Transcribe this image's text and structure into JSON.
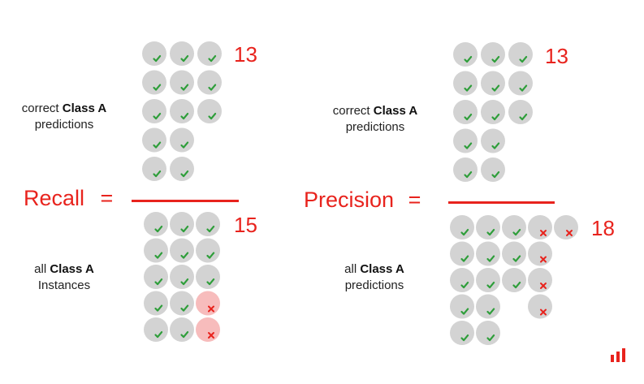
{
  "colors": {
    "accent": "#e8231d",
    "circle": "#d3d3d3",
    "circle_wrong": "#f7bcbc",
    "check": "#2e9e3a",
    "cross": "#e8231d"
  },
  "recall": {
    "label": "Recall",
    "equals": "=",
    "numerator": {
      "count": "13",
      "desc_line1": "correct",
      "desc_bold": "Class A",
      "desc_line2": "predictions"
    },
    "denominator": {
      "count": "15",
      "desc_line1": "all",
      "desc_bold": "Class A",
      "desc_line2": "Instances"
    },
    "numerator_rows": [
      [
        "correct",
        "correct",
        "correct"
      ],
      [
        "correct",
        "correct",
        "correct"
      ],
      [
        "correct",
        "correct",
        "correct"
      ],
      [
        "correct",
        "correct"
      ],
      [
        "correct",
        "correct"
      ]
    ],
    "denominator_rows": [
      [
        "correct",
        "correct",
        "correct"
      ],
      [
        "correct",
        "correct",
        "correct"
      ],
      [
        "correct",
        "correct",
        "correct"
      ],
      [
        "correct",
        "correct",
        "missed"
      ],
      [
        "correct",
        "correct",
        "missed"
      ]
    ]
  },
  "precision": {
    "label": "Precision",
    "equals": "=",
    "numerator": {
      "count": "13",
      "desc_line1": "correct",
      "desc_bold": "Class A",
      "desc_line2": "predictions"
    },
    "denominator": {
      "count": "18",
      "desc_line1": "all",
      "desc_bold": "Class A",
      "desc_line2": "predictions"
    },
    "numerator_rows": [
      [
        "correct",
        "correct",
        "correct"
      ],
      [
        "correct",
        "correct",
        "correct"
      ],
      [
        "correct",
        "correct",
        "correct"
      ],
      [
        "correct",
        "correct"
      ],
      [
        "correct",
        "correct"
      ]
    ],
    "denominator_rows": [
      [
        "correct",
        "correct",
        "correct",
        "wrong",
        "wrong"
      ],
      [
        "correct",
        "correct",
        "correct",
        "wrong"
      ],
      [
        "correct",
        "correct",
        "correct",
        "wrong"
      ],
      [
        "correct",
        "correct",
        null,
        "wrong"
      ],
      [
        "correct",
        "correct"
      ]
    ]
  },
  "logo_icon": "bar-chart-logo-icon"
}
